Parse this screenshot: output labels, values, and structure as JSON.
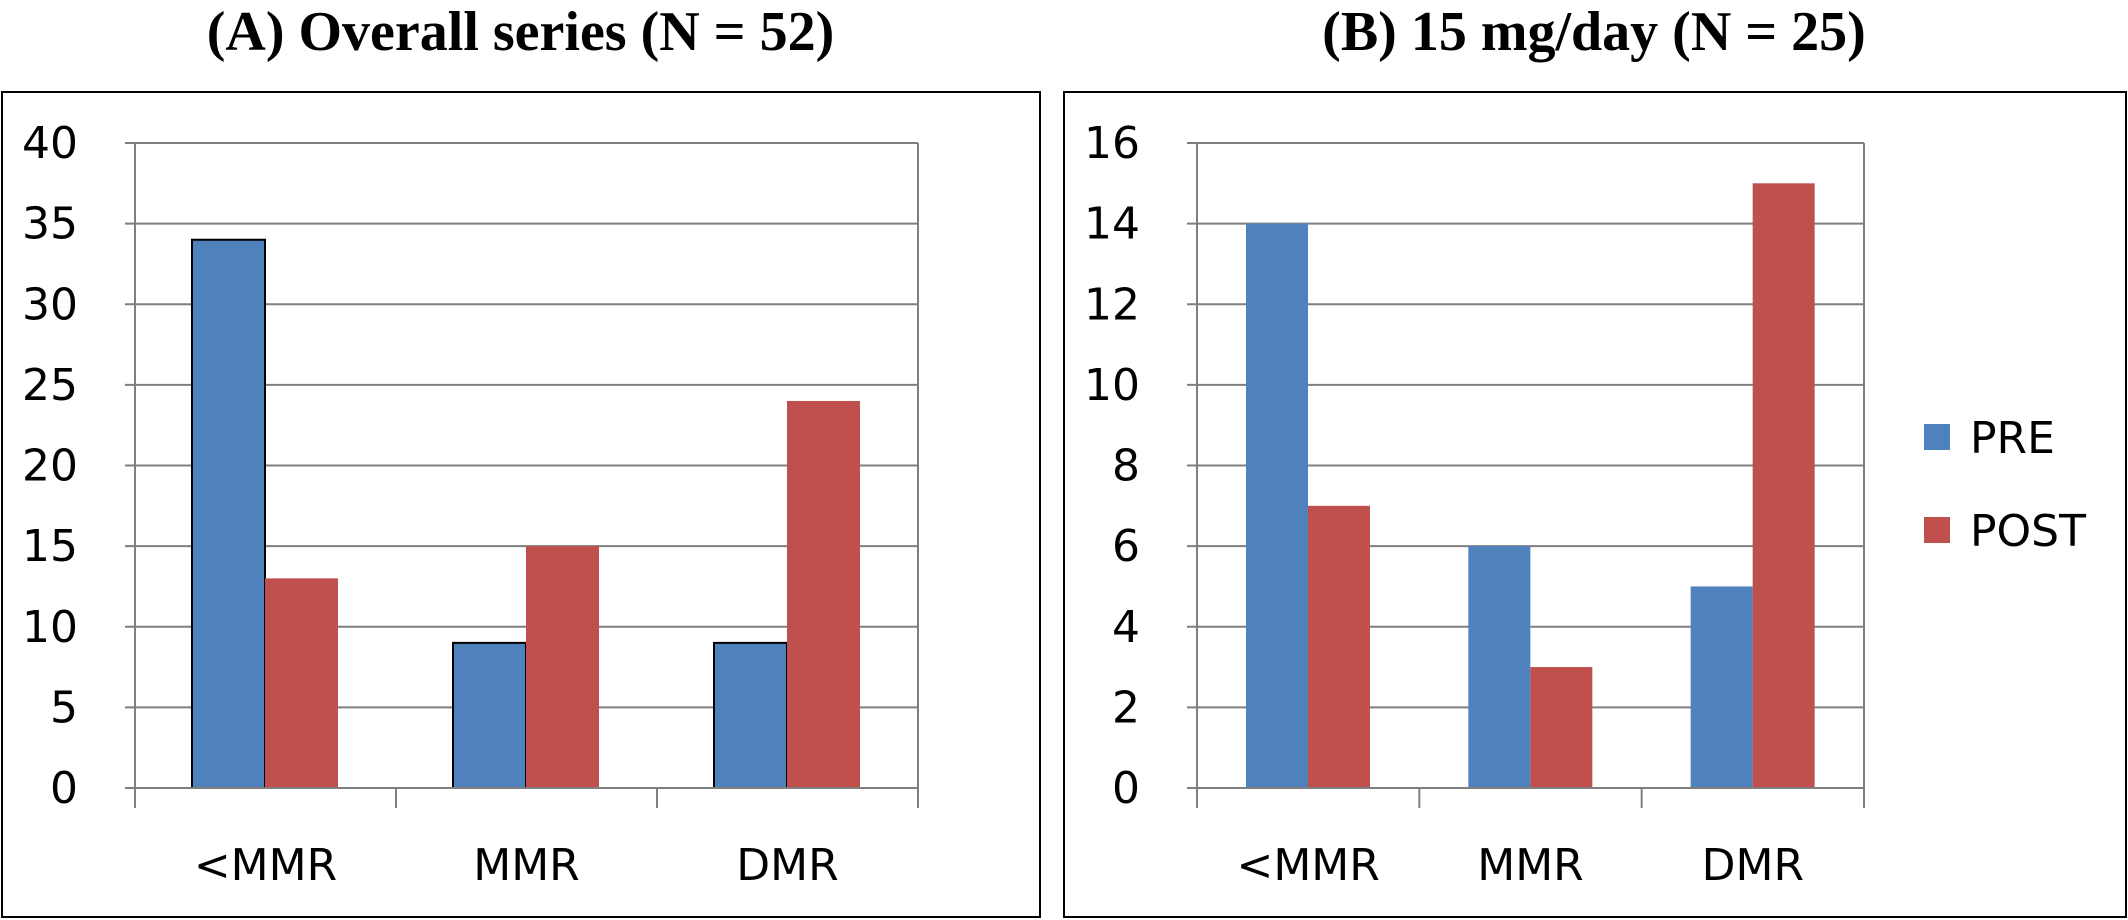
{
  "colors": {
    "pre": "#4f81bd",
    "post": "#c0504d",
    "grid": "#7f7f7f",
    "frame": "#000000"
  },
  "legend": {
    "entries": [
      "PRE",
      "POST"
    ]
  },
  "chart_data": [
    {
      "type": "bar",
      "title": "(A) Overall series (N = 52)",
      "categories": [
        "<MMR",
        "MMR",
        "DMR"
      ],
      "series": [
        {
          "name": "PRE",
          "values": [
            34,
            9,
            9
          ]
        },
        {
          "name": "POST",
          "values": [
            13,
            15,
            24
          ]
        }
      ],
      "ylim": [
        0,
        40
      ],
      "yticks": [
        0,
        5,
        10,
        15,
        20,
        25,
        30,
        35,
        40
      ],
      "grid": true
    },
    {
      "type": "bar",
      "title": "(B) 15 mg/day (N = 25)",
      "categories": [
        "<MMR",
        "MMR",
        "DMR"
      ],
      "series": [
        {
          "name": "PRE",
          "values": [
            14,
            6,
            5
          ]
        },
        {
          "name": "POST",
          "values": [
            7,
            3,
            15
          ]
        }
      ],
      "ylim": [
        0,
        16
      ],
      "yticks": [
        0,
        2,
        4,
        6,
        8,
        10,
        12,
        14,
        16
      ],
      "grid": true,
      "legend_position": "right"
    }
  ]
}
